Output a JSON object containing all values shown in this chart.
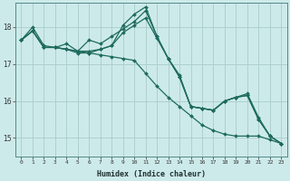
{
  "xlabel": "Humidex (Indice chaleur)",
  "bg_color": "#cdeaea",
  "line_color": "#1e6b5e",
  "grid_color": "#b8d8d8",
  "xlim": [
    -0.5,
    23.5
  ],
  "ylim": [
    14.5,
    18.65
  ],
  "yticks": [
    15,
    16,
    17,
    18
  ],
  "xticks": [
    0,
    1,
    2,
    3,
    4,
    5,
    6,
    7,
    8,
    9,
    10,
    11,
    12,
    13,
    14,
    15,
    16,
    17,
    18,
    19,
    20,
    21,
    22,
    23
  ],
  "series": [
    [
      17.65,
      17.9,
      17.45,
      17.45,
      17.4,
      17.35,
      17.3,
      17.25,
      17.2,
      17.15,
      17.1,
      16.75,
      16.4,
      16.1,
      15.85,
      15.6,
      15.35,
      15.2,
      15.1,
      15.05,
      15.05,
      15.05,
      14.95,
      14.85
    ],
    [
      17.65,
      18.0,
      17.5,
      17.45,
      17.55,
      17.35,
      17.65,
      17.55,
      17.75,
      17.95,
      18.15,
      18.45,
      17.75,
      17.15,
      16.65,
      15.85,
      15.8,
      15.75,
      16.0,
      16.1,
      16.2,
      15.55,
      15.05,
      14.85
    ],
    [
      17.65,
      17.9,
      17.45,
      17.45,
      17.4,
      17.3,
      17.3,
      17.4,
      17.5,
      18.05,
      18.35,
      18.55,
      17.75,
      17.15,
      16.7,
      15.85,
      15.8,
      15.75,
      16.0,
      16.1,
      16.15,
      15.5,
      15.05,
      14.85
    ],
    [
      17.65,
      17.9,
      17.45,
      17.45,
      17.4,
      17.35,
      17.35,
      17.4,
      17.5,
      17.85,
      18.05,
      18.25,
      17.7,
      17.15,
      16.65,
      15.85,
      15.8,
      15.75,
      16.0,
      16.1,
      16.15,
      15.5,
      15.05,
      14.85
    ]
  ]
}
